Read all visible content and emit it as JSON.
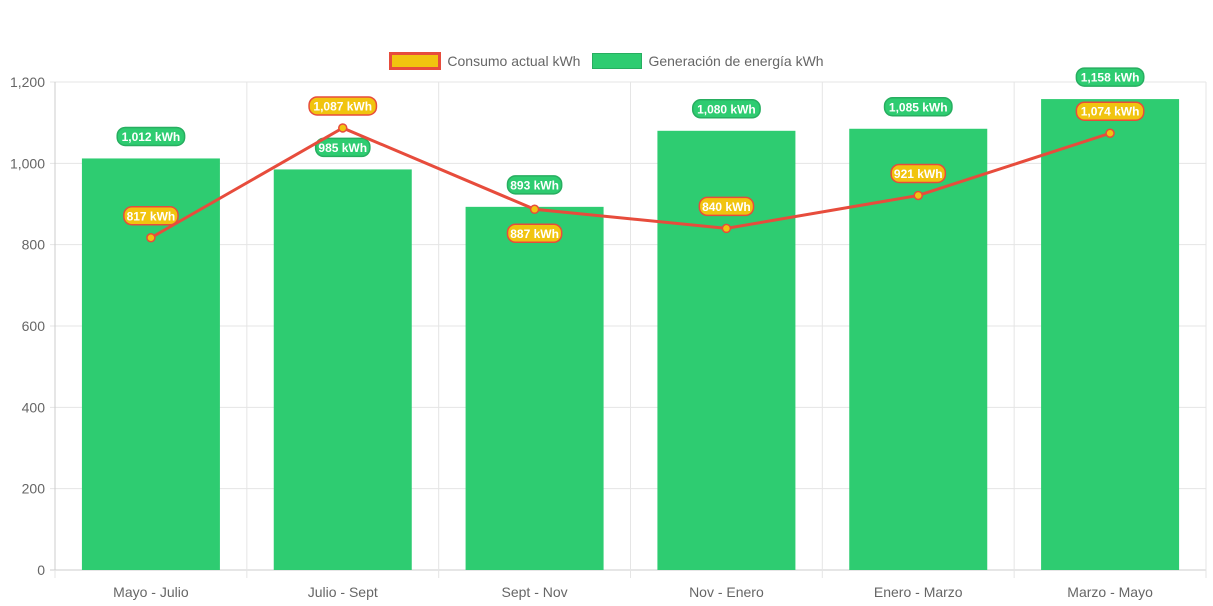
{
  "chart_data": {
    "type": "bar",
    "categories": [
      "Mayo - Julio",
      "Julio - Sept",
      "Sept - Nov",
      "Nov - Enero",
      "Enero - Marzo",
      "Marzo - Mayo"
    ],
    "series": [
      {
        "name": "Consumo actual kWh",
        "type": "line",
        "values": [
          817,
          1087,
          887,
          840,
          921,
          1074
        ],
        "labels": [
          "817 kWh",
          "1,087 kWh",
          "887 kWh",
          "840 kWh",
          "921 kWh",
          "1,074 kWh"
        ],
        "color": "#e74c3c",
        "fill": "#f1c40f"
      },
      {
        "name": "Generación de energía kWh",
        "type": "bar",
        "values": [
          1012,
          985,
          893,
          1080,
          1085,
          1158
        ],
        "labels": [
          "1,012 kWh",
          "985 kWh",
          "893 kWh",
          "1,080 kWh",
          "1,085 kWh",
          "1,158 kWh"
        ],
        "color": "#2ecc71"
      }
    ],
    "yticks": [
      "0",
      "200",
      "400",
      "600",
      "800",
      "1,000",
      "1,200"
    ],
    "ylim": [
      0,
      1200
    ],
    "grid": true,
    "legend": "top"
  }
}
